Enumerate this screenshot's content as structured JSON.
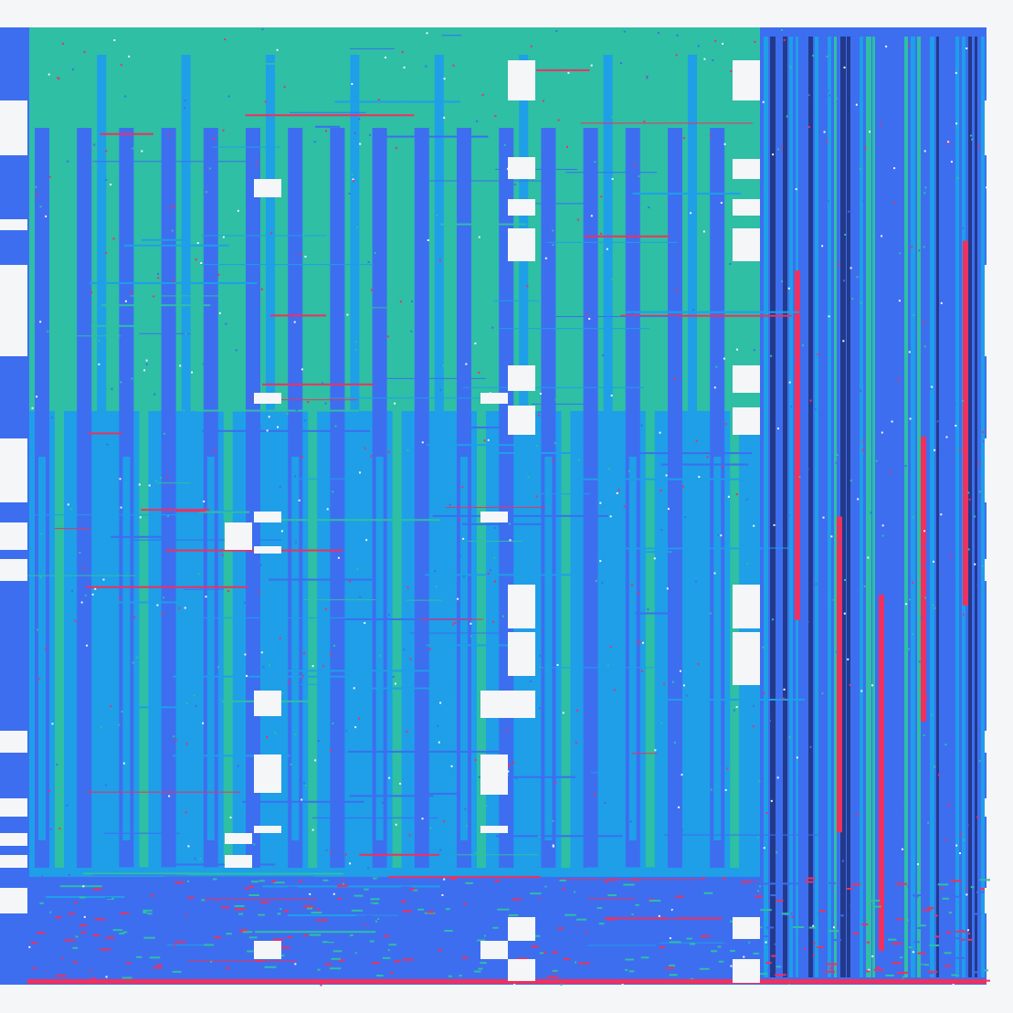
{
  "image": {
    "background_color": "#f5f6f8",
    "palette": {
      "teal": "#2ebfa5",
      "sky_blue": "#1e9fe8",
      "royal_blue": "#3d6ef0",
      "pink_red": "#f0305e",
      "white": "#f5f6f8",
      "dark_navy": "#233a8a"
    }
  }
}
